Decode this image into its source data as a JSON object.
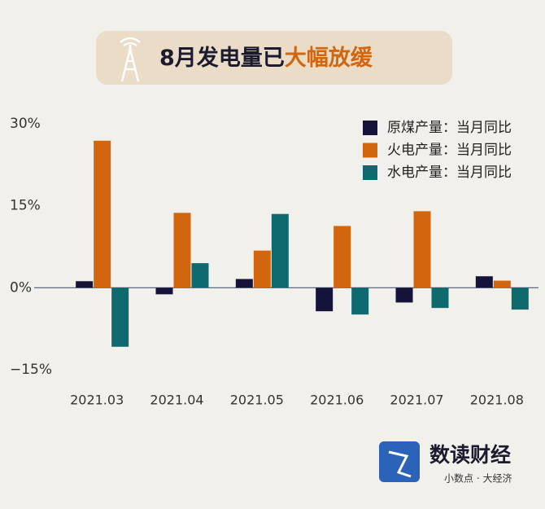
{
  "chart_data": {
    "type": "bar",
    "title": [
      "8月发电量已",
      "大幅放缓"
    ],
    "categories": [
      "2021.03",
      "2021.04",
      "2021.05",
      "2021.06",
      "2021.07",
      "2021.08"
    ],
    "series": [
      {
        "name": "原煤产量：当月同比",
        "color": "#16133b",
        "values": [
          1.2,
          -1.2,
          1.6,
          -4.3,
          -2.7,
          2.1
        ]
      },
      {
        "name": "火电产量：当月同比",
        "color": "#d2660f",
        "values": [
          26.9,
          13.7,
          6.8,
          11.3,
          14.0,
          1.3
        ]
      },
      {
        "name": "水电产量：当月同比",
        "color": "#0f6a70",
        "values": [
          -10.8,
          4.5,
          13.5,
          -4.9,
          -3.7,
          -4.0
        ]
      }
    ],
    "ylim": [
      -17,
      31
    ],
    "yticks": [
      {
        "value": 30,
        "label": "30%"
      },
      {
        "value": 15,
        "label": "15%"
      },
      {
        "value": 0,
        "label": "0%"
      },
      {
        "value": -15,
        "label": "−15%"
      }
    ],
    "legend": "top-right"
  },
  "brand": {
    "name": "数读财经",
    "slogan": "小数点 · 大经济"
  }
}
